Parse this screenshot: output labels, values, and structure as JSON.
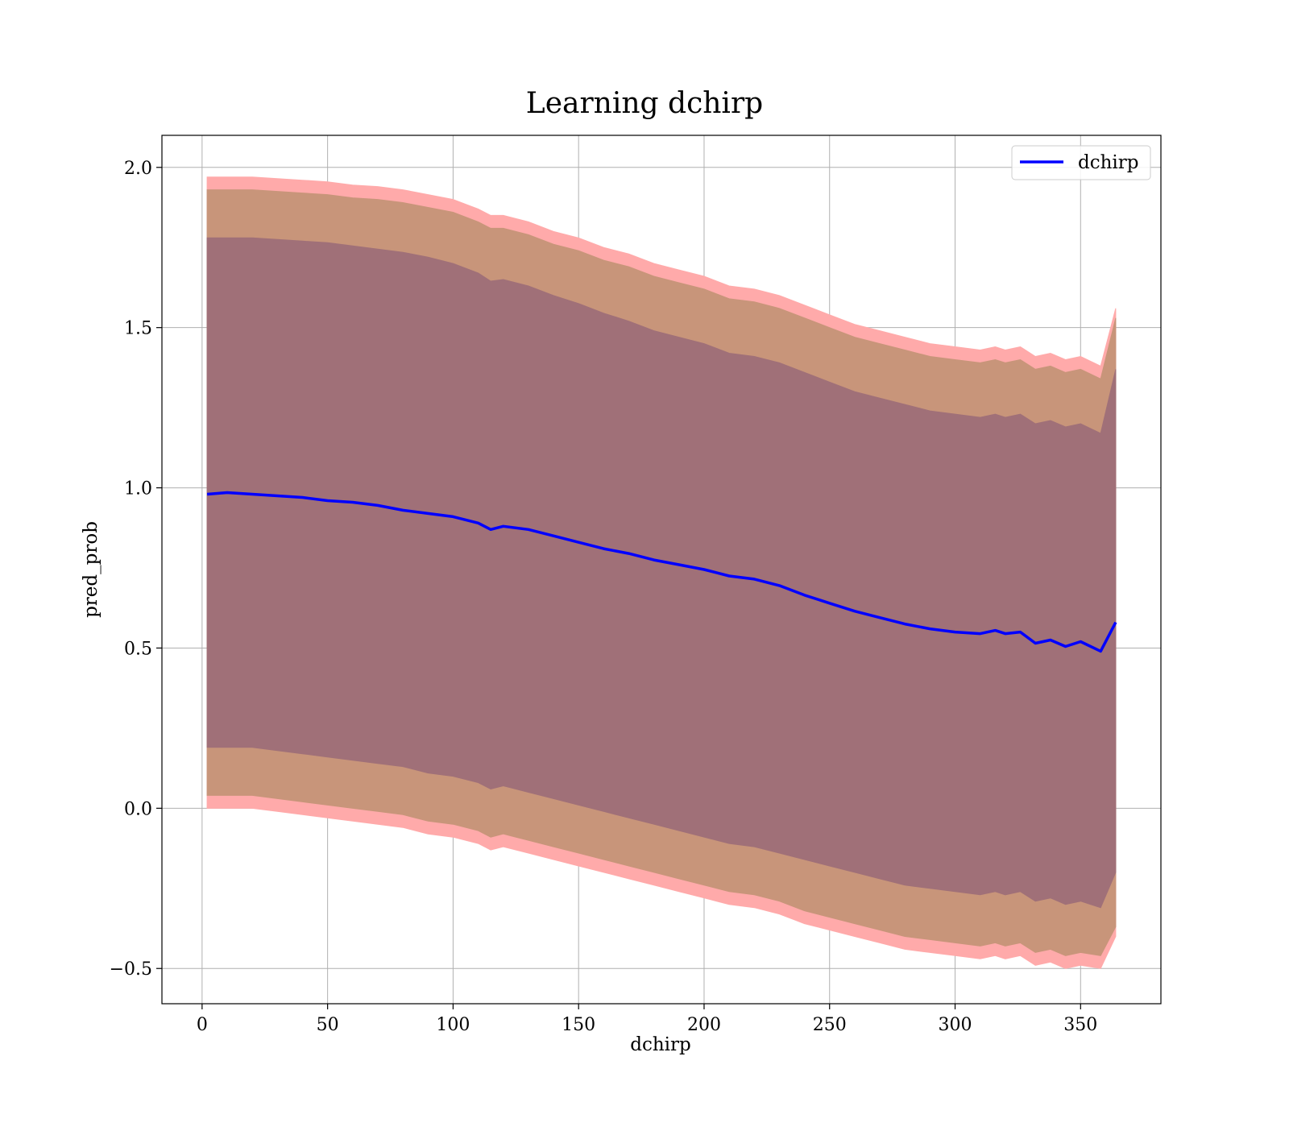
{
  "chart_data": {
    "type": "area",
    "title": "Learning dchirp",
    "xlabel": "dchirp",
    "ylabel": "pred_prob",
    "xlim": [
      -16,
      382
    ],
    "ylim": [
      -0.61,
      2.1
    ],
    "xticks": [
      "0",
      "50",
      "100",
      "150",
      "200",
      "250",
      "300",
      "350"
    ],
    "yticks": [
      "−0.5",
      "0.0",
      "0.5",
      "1.0",
      "1.5",
      "2.0"
    ],
    "grid": true,
    "legend": {
      "position": "top-right",
      "entries": [
        "dchirp"
      ]
    },
    "colors": {
      "line": "#0000ff",
      "band_outer": "#ffaaaa",
      "band_mid": "#c8957a",
      "band_inner": "#a07078",
      "grid": "#b0b0b0"
    },
    "x": [
      2,
      10,
      20,
      30,
      40,
      50,
      60,
      70,
      80,
      90,
      100,
      110,
      115,
      120,
      130,
      140,
      150,
      160,
      170,
      180,
      190,
      200,
      210,
      220,
      230,
      240,
      250,
      260,
      270,
      280,
      290,
      300,
      310,
      316,
      320,
      326,
      332,
      338,
      344,
      350,
      358,
      364
    ],
    "series": [
      {
        "name": "dchirp",
        "values": [
          0.98,
          0.985,
          0.98,
          0.975,
          0.97,
          0.96,
          0.955,
          0.945,
          0.93,
          0.92,
          0.91,
          0.89,
          0.87,
          0.88,
          0.87,
          0.85,
          0.83,
          0.81,
          0.795,
          0.775,
          0.76,
          0.745,
          0.725,
          0.715,
          0.695,
          0.665,
          0.64,
          0.615,
          0.595,
          0.575,
          0.56,
          0.55,
          0.545,
          0.555,
          0.545,
          0.55,
          0.515,
          0.525,
          0.505,
          0.52,
          0.49,
          0.58
        ]
      }
    ],
    "bands": [
      {
        "upper": [
          1.97,
          1.97,
          1.97,
          1.965,
          1.96,
          1.955,
          1.945,
          1.94,
          1.93,
          1.915,
          1.9,
          1.87,
          1.85,
          1.85,
          1.83,
          1.8,
          1.78,
          1.75,
          1.73,
          1.7,
          1.68,
          1.66,
          1.63,
          1.62,
          1.6,
          1.57,
          1.54,
          1.51,
          1.49,
          1.47,
          1.45,
          1.44,
          1.43,
          1.44,
          1.43,
          1.44,
          1.41,
          1.42,
          1.4,
          1.41,
          1.38,
          1.56
        ],
        "lower": [
          0.0,
          0.0,
          0.0,
          -0.01,
          -0.02,
          -0.03,
          -0.04,
          -0.05,
          -0.06,
          -0.08,
          -0.09,
          -0.11,
          -0.13,
          -0.12,
          -0.14,
          -0.16,
          -0.18,
          -0.2,
          -0.22,
          -0.24,
          -0.26,
          -0.28,
          -0.3,
          -0.31,
          -0.33,
          -0.36,
          -0.38,
          -0.4,
          -0.42,
          -0.44,
          -0.45,
          -0.46,
          -0.47,
          -0.46,
          -0.47,
          -0.46,
          -0.49,
          -0.48,
          -0.5,
          -0.49,
          -0.5,
          -0.4
        ]
      },
      {
        "upper": [
          1.93,
          1.93,
          1.93,
          1.925,
          1.92,
          1.915,
          1.905,
          1.9,
          1.89,
          1.875,
          1.86,
          1.83,
          1.81,
          1.81,
          1.79,
          1.76,
          1.74,
          1.71,
          1.69,
          1.66,
          1.64,
          1.62,
          1.59,
          1.58,
          1.56,
          1.53,
          1.5,
          1.47,
          1.45,
          1.43,
          1.41,
          1.4,
          1.39,
          1.4,
          1.39,
          1.4,
          1.37,
          1.38,
          1.36,
          1.37,
          1.34,
          1.53
        ],
        "lower": [
          0.04,
          0.04,
          0.04,
          0.03,
          0.02,
          0.01,
          0.0,
          -0.01,
          -0.02,
          -0.04,
          -0.05,
          -0.07,
          -0.09,
          -0.08,
          -0.1,
          -0.12,
          -0.14,
          -0.16,
          -0.18,
          -0.2,
          -0.22,
          -0.24,
          -0.26,
          -0.27,
          -0.29,
          -0.32,
          -0.34,
          -0.36,
          -0.38,
          -0.4,
          -0.41,
          -0.42,
          -0.43,
          -0.42,
          -0.43,
          -0.42,
          -0.45,
          -0.44,
          -0.46,
          -0.45,
          -0.46,
          -0.37
        ]
      },
      {
        "upper": [
          1.78,
          1.78,
          1.78,
          1.775,
          1.77,
          1.765,
          1.755,
          1.745,
          1.735,
          1.72,
          1.7,
          1.67,
          1.645,
          1.65,
          1.63,
          1.6,
          1.575,
          1.545,
          1.52,
          1.49,
          1.47,
          1.45,
          1.42,
          1.41,
          1.39,
          1.36,
          1.33,
          1.3,
          1.28,
          1.26,
          1.24,
          1.23,
          1.22,
          1.23,
          1.22,
          1.23,
          1.2,
          1.21,
          1.19,
          1.2,
          1.17,
          1.37
        ],
        "lower": [
          0.19,
          0.19,
          0.19,
          0.18,
          0.17,
          0.16,
          0.15,
          0.14,
          0.13,
          0.11,
          0.1,
          0.08,
          0.06,
          0.07,
          0.05,
          0.03,
          0.01,
          -0.01,
          -0.03,
          -0.05,
          -0.07,
          -0.09,
          -0.11,
          -0.12,
          -0.14,
          -0.16,
          -0.18,
          -0.2,
          -0.22,
          -0.24,
          -0.25,
          -0.26,
          -0.27,
          -0.26,
          -0.27,
          -0.26,
          -0.29,
          -0.28,
          -0.3,
          -0.29,
          -0.31,
          -0.2
        ]
      }
    ]
  }
}
